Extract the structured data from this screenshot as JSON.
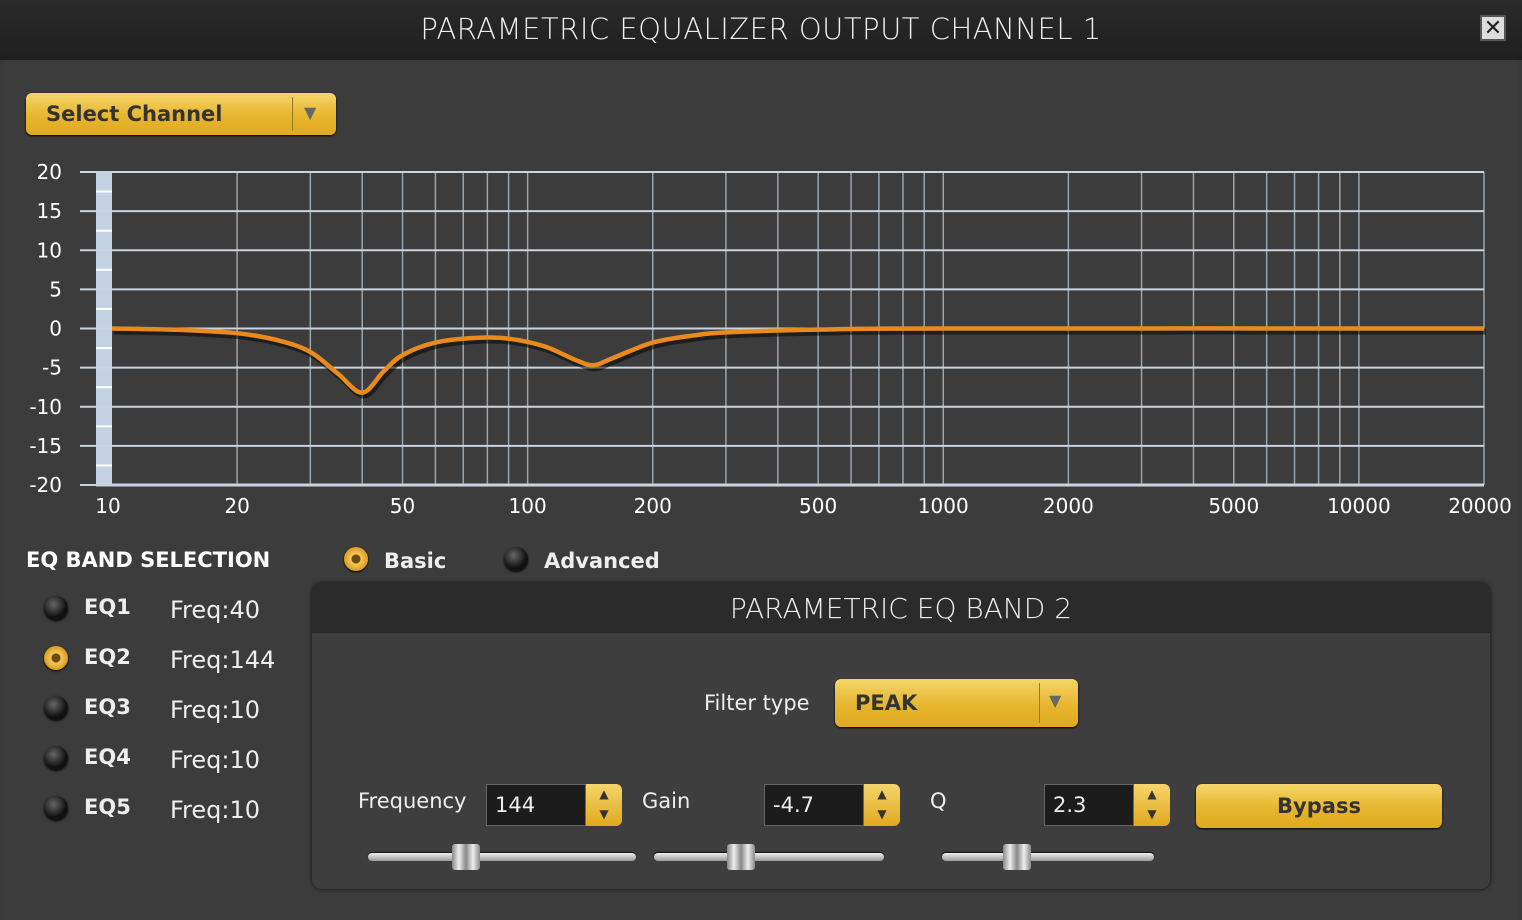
{
  "window": {
    "title": "PARAMETRIC EQUALIZER OUTPUT CHANNEL 1",
    "close_icon": "close-icon"
  },
  "channel_select": {
    "label": "Select Channel"
  },
  "colors": {
    "accent": "#e8b530",
    "curve": "#e88a1e",
    "grid": "#c8d4e0"
  },
  "chart_data": {
    "type": "line",
    "x_scale": "log",
    "xlim": [
      10,
      20000
    ],
    "ylim": [
      -20,
      20
    ],
    "grid": true,
    "x_ticks": [
      "10",
      "20",
      "50",
      "100",
      "200",
      "500",
      "1000",
      "2000",
      "5000",
      "10000",
      "20000"
    ],
    "y_ticks": [
      "20",
      "15",
      "10",
      "5",
      "0",
      "-5",
      "-10",
      "-15",
      "-20"
    ],
    "series": [
      {
        "points": [
          [
            10,
            0
          ],
          [
            15,
            -0.2
          ],
          [
            20,
            -0.6
          ],
          [
            25,
            -1.5
          ],
          [
            30,
            -3
          ],
          [
            35,
            -5.8
          ],
          [
            40,
            -8.2
          ],
          [
            45,
            -5.5
          ],
          [
            50,
            -3.4
          ],
          [
            60,
            -1.8
          ],
          [
            75,
            -1.2
          ],
          [
            90,
            -1.3
          ],
          [
            110,
            -2.3
          ],
          [
            130,
            -4
          ],
          [
            144,
            -4.7
          ],
          [
            160,
            -3.8
          ],
          [
            200,
            -1.8
          ],
          [
            250,
            -0.9
          ],
          [
            300,
            -0.5
          ],
          [
            500,
            -0.15
          ],
          [
            1000,
            0
          ],
          [
            20000,
            0
          ]
        ]
      }
    ]
  },
  "band_selection": {
    "title": "EQ BAND SELECTION",
    "mode_basic": "Basic",
    "mode_advanced": "Advanced",
    "mode_selected": "Basic",
    "bands": [
      {
        "label": "EQ1",
        "freq": "Freq:40",
        "selected": false
      },
      {
        "label": "EQ2",
        "freq": "Freq:144",
        "selected": true
      },
      {
        "label": "EQ3",
        "freq": "Freq:10",
        "selected": false
      },
      {
        "label": "EQ4",
        "freq": "Freq:10",
        "selected": false
      },
      {
        "label": "EQ5",
        "freq": "Freq:10",
        "selected": false
      }
    ]
  },
  "band_panel": {
    "title": "PARAMETRIC EQ BAND 2",
    "filter_type_label": "Filter type",
    "filter_type": "PEAK",
    "frequency_label": "Frequency",
    "frequency": "144",
    "gain_label": "Gain",
    "gain": "-4.7",
    "q_label": "Q",
    "q": "2.3",
    "bypass_label": "Bypass",
    "slider_levels": {
      "frequency": 0.35,
      "gain": 0.36,
      "q": 0.33
    }
  }
}
